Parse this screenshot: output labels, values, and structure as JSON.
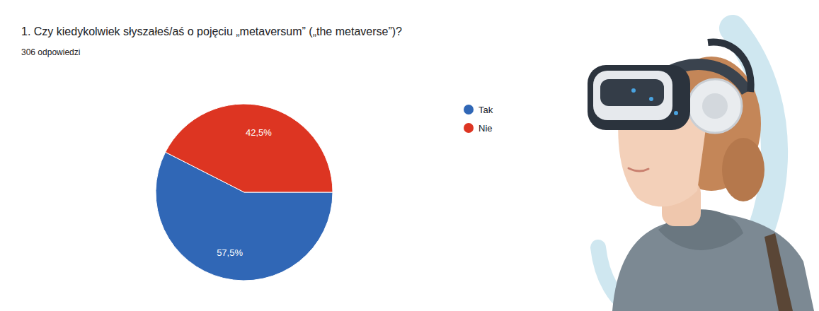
{
  "chart_data": {
    "type": "pie",
    "title": "1. Czy kiedykolwiek słyszałeś/aś o pojęciu „metaversum” („the metaverse”)?",
    "subtitle": "306 odpowiedzi",
    "categories": [
      "Tak",
      "Nie"
    ],
    "values": [
      57.5,
      42.5
    ],
    "value_labels": [
      "57,5%",
      "42,5%"
    ],
    "colors": [
      "#3067b6",
      "#dd3522"
    ],
    "data_labels": true,
    "legend": "right"
  }
}
